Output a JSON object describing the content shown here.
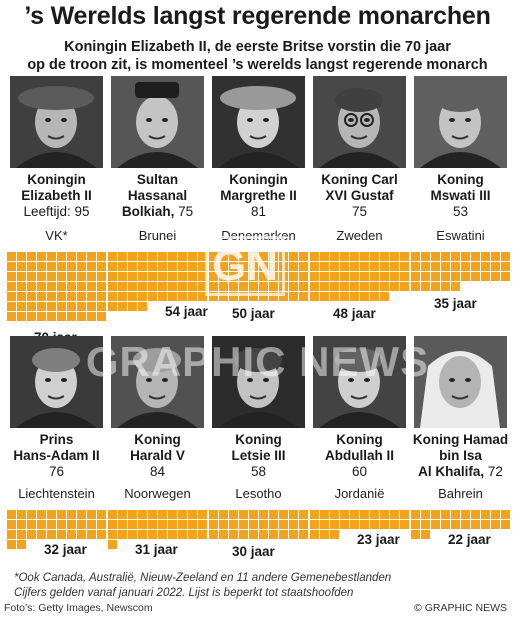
{
  "title": "’s Werelds langst regerende monarchen",
  "subtitle_line1": "Koningin Elizabeth II, de eerste Britse vorstin die 70 jaar",
  "subtitle_line2": "op de troon zit, is momenteel ’s werelds langst regerende monarch",
  "watermark": {
    "logo": "GN",
    "text": "GRAPHIC NEWS"
  },
  "rows": [
    {
      "monarchs": [
        {
          "title": "Koningin",
          "name_l2": "Elizabeth II",
          "name_l3": "",
          "age_label": "Leeftijd: 95",
          "country": "VK*",
          "reign": 70,
          "years_label": "70 jaar",
          "photo_icon": "portrait-queen-hat-icon"
        },
        {
          "title": "Sultan",
          "name_l2": "Hassanal",
          "name_l3": "Bolkiah,",
          "age_label": "75",
          "country": "Brunei",
          "reign": 54,
          "years_label": "54 jaar",
          "photo_icon": "portrait-sultan-icon"
        },
        {
          "title": "Koningin",
          "name_l2": "Margrethe II",
          "name_l3": "",
          "age_label": "81",
          "country": "Denemarken",
          "reign": 50,
          "years_label": "50 jaar",
          "photo_icon": "portrait-queen-icon"
        },
        {
          "title": "Koning Carl",
          "name_l2": "XVI Gustaf",
          "name_l3": "",
          "age_label": "75",
          "country": "Zweden",
          "reign": 48,
          "years_label": "48 jaar",
          "photo_icon": "portrait-king-glasses-icon"
        },
        {
          "title": "Koning",
          "name_l2": "Mswati III",
          "name_l3": "",
          "age_label": "53",
          "country": "Eswatini",
          "reign": 35,
          "years_label": "35 jaar",
          "photo_icon": "portrait-king-icon"
        }
      ]
    },
    {
      "monarchs": [
        {
          "title": "Prins",
          "name_l2": "Hans-Adam II",
          "name_l3": "",
          "age_label": "76",
          "country": "Liechtenstein",
          "reign": 32,
          "years_label": "32 jaar",
          "photo_icon": "portrait-prince-icon"
        },
        {
          "title": "Koning",
          "name_l2": "Harald V",
          "name_l3": "",
          "age_label": "84",
          "country": "Noorwegen",
          "reign": 31,
          "years_label": "31 jaar",
          "photo_icon": "portrait-king-icon"
        },
        {
          "title": "Koning",
          "name_l2": "Letsie III",
          "name_l3": "",
          "age_label": "58",
          "country": "Lesotho",
          "reign": 30,
          "years_label": "30 jaar",
          "photo_icon": "portrait-king-icon"
        },
        {
          "title": "Koning",
          "name_l2": "Abdullah II",
          "name_l3": "",
          "age_label": "60",
          "country": "Jordanië",
          "reign": 23,
          "years_label": "23 jaar",
          "photo_icon": "portrait-king-icon"
        },
        {
          "title": "Koning Hamad",
          "name_l2": "bin Isa",
          "name_l3": "Al Khalifa,",
          "age_label": "72",
          "country": "Bahrein",
          "reign": 22,
          "years_label": "22 jaar",
          "photo_icon": "portrait-king-headdress-icon"
        }
      ]
    }
  ],
  "footnote_line1": "*Ook Canada, Australië, Nieuw-Zeeland en 11 andere Gemenebestlanden",
  "footnote_line2": "Cijfers gelden vanaf januari 2022. Lijst is beperkt tot staatshoofden",
  "credits": "Foto’s: Getty Images, Newscom",
  "copyright": "© GRAPHIC NEWS",
  "colors": {
    "bar": "#f3a21a",
    "text": "#1a1a1a"
  },
  "chart_data": {
    "type": "bar",
    "categories": [
      "VK*",
      "Brunei",
      "Denemarken",
      "Zweden",
      "Eswatini",
      "Liechtenstein",
      "Noorwegen",
      "Lesotho",
      "Jordanië",
      "Bahrein"
    ],
    "values": [
      70,
      54,
      50,
      48,
      35,
      32,
      31,
      30,
      23,
      22
    ],
    "unit": "jaar"
  }
}
